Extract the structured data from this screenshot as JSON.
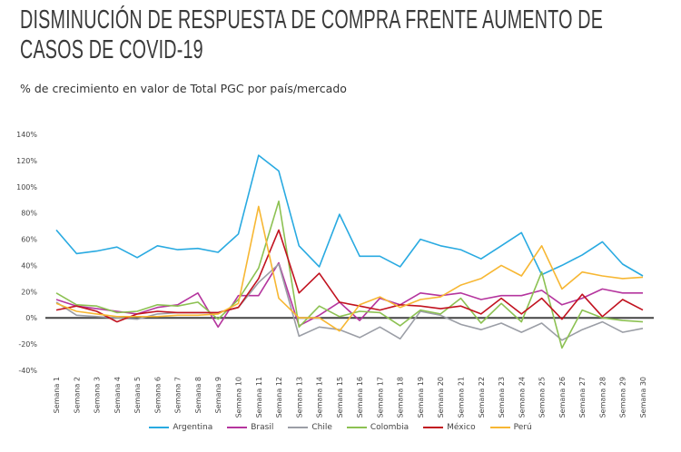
{
  "title": "DISMINUCIÓN DE RESPUESTA DE COMPRA FRENTE AUMENTO DE CASOS DE COVID-19",
  "subtitle": "% de crecimiento en valor de Total PGC por país/mercado",
  "chart_data": {
    "type": "line",
    "title": "DISMINUCIÓN DE RESPUESTA DE COMPRA FRENTE AUMENTO DE CASOS DE COVID-19",
    "subtitle": "% de crecimiento en valor de Total PGC por país/mercado",
    "xlabel": "",
    "ylabel": "",
    "ylim": [
      -40,
      140
    ],
    "yticks": [
      -40,
      -20,
      0,
      20,
      40,
      60,
      80,
      100,
      120,
      140
    ],
    "ytick_labels": [
      "-40%",
      "-20%",
      "0%",
      "20%",
      "40%",
      "60%",
      "80%",
      "100%",
      "120%",
      "140%"
    ],
    "grid": false,
    "legend_position": "bottom",
    "categories": [
      "Semana 1",
      "Semana 2",
      "Semana 3",
      "Semana 4",
      "Semana 5",
      "Semana 6",
      "Semana 7",
      "Semana 8",
      "Semana 9",
      "Semana 10",
      "Semana 11",
      "Semana 12",
      "Semana 13",
      "Semana 14",
      "Semana 15",
      "Semana 16",
      "Semana 17",
      "Semana 18",
      "Semana 19",
      "Semana 20",
      "Semana 21",
      "Semana 22",
      "Semana 23",
      "Semana 24",
      "Semana 25",
      "Semana 26",
      "Semana 27",
      "Semana 28",
      "Semana 29",
      "Semana 30"
    ],
    "series": [
      {
        "name": "Argentina",
        "color": "#29aae1",
        "values": [
          67,
          49,
          51,
          54,
          46,
          55,
          52,
          53,
          50,
          64,
          124,
          112,
          55,
          39,
          79,
          47,
          47,
          39,
          60,
          55,
          52,
          45,
          55,
          65,
          33,
          40,
          48,
          58,
          41,
          32
        ]
      },
      {
        "name": "Brasil",
        "color": "#b5359e",
        "values": [
          14,
          9,
          7,
          5,
          3,
          8,
          10,
          19,
          -7,
          17,
          17,
          42,
          -6,
          2,
          12,
          -2,
          15,
          10,
          19,
          17,
          19,
          14,
          17,
          17,
          21,
          10,
          15,
          22,
          19,
          19
        ]
      },
      {
        "name": "Chile",
        "color": "#9b9ea6",
        "values": [
          12,
          2,
          1,
          0,
          -1,
          3,
          4,
          4,
          4,
          8,
          27,
          41,
          -14,
          -7,
          -9,
          -15,
          -7,
          -16,
          5,
          2,
          -5,
          -9,
          -4,
          -11,
          -4,
          -17,
          -9,
          -3,
          -11,
          -8
        ]
      },
      {
        "name": "Colombia",
        "color": "#8cc152",
        "values": [
          19,
          10,
          9,
          4,
          5,
          10,
          9,
          12,
          -1,
          14,
          38,
          89,
          -7,
          9,
          1,
          5,
          4,
          -6,
          6,
          3,
          15,
          -4,
          11,
          -3,
          35,
          -23,
          6,
          0,
          -2,
          -3
        ]
      },
      {
        "name": "México",
        "color": "#c1121f",
        "values": [
          6,
          9,
          5,
          -3,
          3,
          5,
          4,
          4,
          4,
          8,
          30,
          67,
          19,
          34,
          12,
          9,
          6,
          10,
          9,
          7,
          9,
          3,
          15,
          3,
          15,
          -1,
          18,
          1,
          14,
          6
        ]
      },
      {
        "name": "Perú",
        "color": "#f7b733",
        "values": [
          11,
          5,
          3,
          1,
          1,
          1,
          2,
          2,
          3,
          11,
          85,
          15,
          0,
          0,
          -10,
          10,
          16,
          8,
          14,
          16,
          25,
          30,
          40,
          32,
          55,
          22,
          35,
          32,
          30,
          31
        ]
      }
    ]
  }
}
